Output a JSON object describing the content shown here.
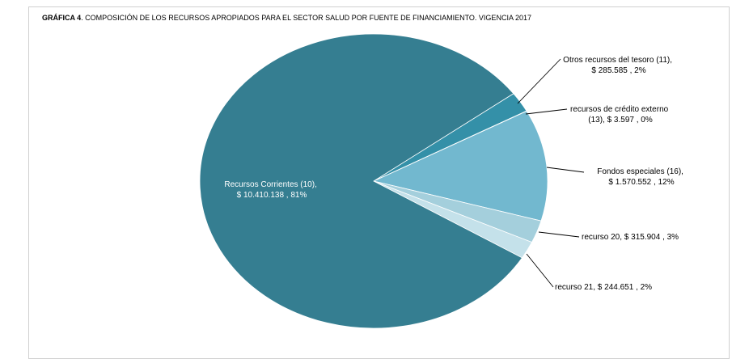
{
  "chart_data": {
    "type": "pie",
    "title_bold": "GRÁFICA 4",
    "title_rest": ". COMPOSICIÓN DE LOS RECURSOS APROPIADOS PARA EL SECTOR SALUD POR FUENTE DE FINANCIAMIENTO.  VIGENCIA  2017",
    "slices": [
      {
        "label_line1": "Recursos Corrientes (10),",
        "label_line2": "$ 10.410.138 , 81%",
        "value": 10410138,
        "percent": 81,
        "color": "#357e91"
      },
      {
        "label_line1": "Otros recursos del tesoro (11),",
        "label_line2": "$ 285.585 , 2%",
        "value": 285585,
        "percent": 2,
        "color": "#3490a8"
      },
      {
        "label_line1": "recursos de crédito externo",
        "label_line2": "(13),  $ 3.597 , 0%",
        "value": 3597,
        "percent": 0,
        "color": "#5aa8c1"
      },
      {
        "label_line1": "Fondos especiales (16),",
        "label_line2": "$ 1.570.552 , 12%",
        "value": 1570552,
        "percent": 12,
        "color": "#72b8cf"
      },
      {
        "label_line1": "recurso 20,  $ 315.904 , 3%",
        "label_line2": "",
        "value": 315904,
        "percent": 3,
        "color": "#a4cfdc"
      },
      {
        "label_line1": "recurso 21,  $ 244.651 , 2%",
        "label_line2": "",
        "value": 244651,
        "percent": 2,
        "color": "#c4e1ea"
      }
    ]
  }
}
